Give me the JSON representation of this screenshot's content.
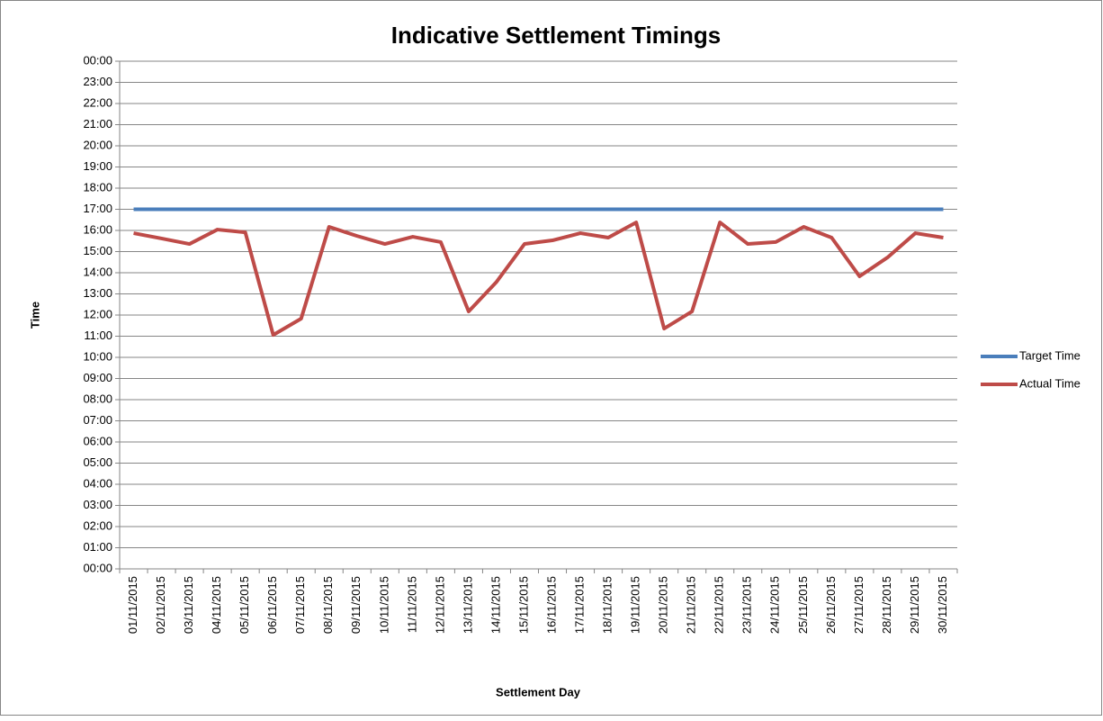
{
  "chart_data": {
    "type": "line",
    "title": "Indicative Settlement Timings",
    "x_label": "Settlement Day",
    "y_label": "Time",
    "categories": [
      "01/11/2015",
      "02/11/2015",
      "03/11/2015",
      "04/11/2015",
      "05/11/2015",
      "06/11/2015",
      "07/11/2015",
      "08/11/2015",
      "09/11/2015",
      "10/11/2015",
      "11/11/2015",
      "12/11/2015",
      "13/11/2015",
      "14/11/2015",
      "15/11/2015",
      "16/11/2015",
      "17/11/2015",
      "18/11/2015",
      "19/11/2015",
      "20/11/2015",
      "21/11/2015",
      "22/11/2015",
      "23/11/2015",
      "24/11/2015",
      "25/11/2015",
      "26/11/2015",
      "27/11/2015",
      "28/11/2015",
      "29/11/2015",
      "30/11/2015"
    ],
    "series": [
      {
        "name": "Target Time",
        "color": "#4a7ebb",
        "values": [
          17,
          17,
          17,
          17,
          17,
          17,
          17,
          17,
          17,
          17,
          17,
          17,
          17,
          17,
          17,
          17,
          17,
          17,
          17,
          17,
          17,
          17,
          17,
          17,
          17,
          17,
          17,
          17,
          17,
          17
        ]
      },
      {
        "name": "Actual Time",
        "color": "#be4b48",
        "values": [
          15.87,
          15.62,
          15.36,
          16.04,
          15.91,
          11.06,
          11.83,
          16.17,
          15.74,
          15.36,
          15.7,
          15.45,
          12.17,
          13.57,
          15.36,
          15.53,
          15.87,
          15.66,
          16.38,
          11.36,
          12.17,
          16.38,
          15.36,
          15.45,
          16.17,
          15.66,
          13.83,
          14.72,
          15.87,
          15.66
        ]
      }
    ],
    "ylim": [
      0,
      24
    ],
    "yticks": [
      {
        "value": 0,
        "label": "00:00"
      },
      {
        "value": 1,
        "label": "01:00"
      },
      {
        "value": 2,
        "label": "02:00"
      },
      {
        "value": 3,
        "label": "03:00"
      },
      {
        "value": 4,
        "label": "04:00"
      },
      {
        "value": 5,
        "label": "05:00"
      },
      {
        "value": 6,
        "label": "06:00"
      },
      {
        "value": 7,
        "label": "07:00"
      },
      {
        "value": 8,
        "label": "08:00"
      },
      {
        "value": 9,
        "label": "09:00"
      },
      {
        "value": 10,
        "label": "10:00"
      },
      {
        "value": 11,
        "label": "11:00"
      },
      {
        "value": 12,
        "label": "12:00"
      },
      {
        "value": 13,
        "label": "13:00"
      },
      {
        "value": 14,
        "label": "14:00"
      },
      {
        "value": 15,
        "label": "15:00"
      },
      {
        "value": 16,
        "label": "16:00"
      },
      {
        "value": 17,
        "label": "17:00"
      },
      {
        "value": 18,
        "label": "18:00"
      },
      {
        "value": 19,
        "label": "19:00"
      },
      {
        "value": 20,
        "label": "20:00"
      },
      {
        "value": 21,
        "label": "21:00"
      },
      {
        "value": 22,
        "label": "22:00"
      },
      {
        "value": 23,
        "label": "23:00"
      },
      {
        "value": 24,
        "label": "00:00"
      }
    ],
    "grid": true,
    "legend": "right"
  }
}
